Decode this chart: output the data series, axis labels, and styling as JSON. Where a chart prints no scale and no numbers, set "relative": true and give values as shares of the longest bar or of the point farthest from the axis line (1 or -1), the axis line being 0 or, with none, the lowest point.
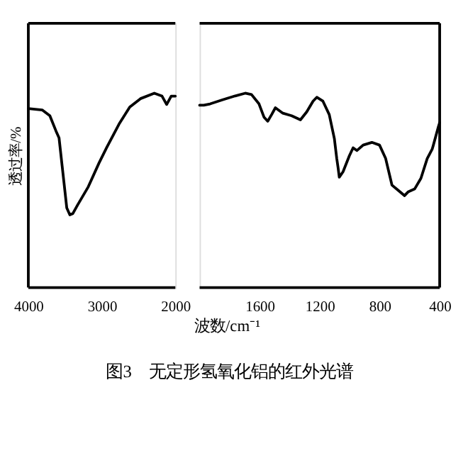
{
  "chart_data": [
    {
      "type": "line",
      "title": "图3　无定形氢氧化铝的红外光谱",
      "ylabel": "透过率/%",
      "relative": true,
      "tick_labels": "x",
      "color": "#000000",
      "xlim": [
        4000,
        2000
      ],
      "xticks": [
        4000,
        3000,
        2000
      ],
      "x": [
        4000,
        3812,
        3707,
        3624,
        3582,
        3540,
        3477,
        3435,
        3394,
        3331,
        3185,
        3038,
        2934,
        2766,
        2620,
        2474,
        2286,
        2181,
        2118,
        2056,
        2000
      ],
      "values": [
        0.921,
        0.914,
        0.884,
        0.806,
        0.77,
        0.626,
        0.41,
        0.374,
        0.381,
        0.424,
        0.518,
        0.641,
        0.72,
        0.841,
        0.929,
        0.972,
        1,
        0.985,
        0.942,
        0.985,
        0.985
      ]
    },
    {
      "type": "line",
      "xlabel": "波数/cm⁻¹",
      "relative": true,
      "tick_labels": "x",
      "color": "#000000",
      "xlim": [
        2000,
        400
      ],
      "xticks": [
        1600,
        1200,
        800,
        400
      ],
      "x": [
        2000,
        1972,
        1930,
        1847,
        1763,
        1696,
        1654,
        1604,
        1571,
        1546,
        1520,
        1495,
        1445,
        1387,
        1328,
        1286,
        1244,
        1219,
        1178,
        1136,
        1102,
        1086,
        1077,
        1069,
        1044,
        1002,
        977,
        952,
        910,
        852,
        801,
        760,
        718,
        676,
        634,
        609,
        567,
        525,
        483,
        450,
        442,
        408,
        400
      ],
      "values": [
        0.938,
        0.938,
        0.945,
        0.966,
        0.986,
        1,
        0.993,
        0.945,
        0.877,
        0.856,
        0.89,
        0.925,
        0.897,
        0.884,
        0.863,
        0.904,
        0.959,
        0.979,
        0.959,
        0.89,
        0.767,
        0.664,
        0.616,
        0.568,
        0.596,
        0.678,
        0.719,
        0.705,
        0.733,
        0.747,
        0.733,
        0.664,
        0.527,
        0.5,
        0.473,
        0.493,
        0.507,
        0.562,
        0.664,
        0.712,
        0.733,
        0.829,
        0.849
      ]
    }
  ]
}
